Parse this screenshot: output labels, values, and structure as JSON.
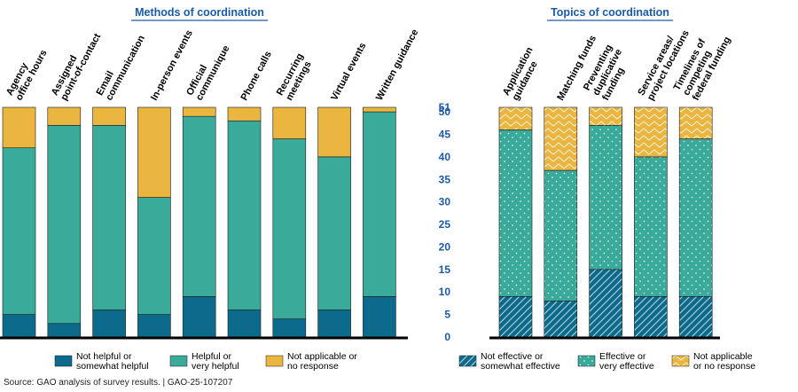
{
  "chart_data": [
    {
      "type": "bar",
      "stacked": true,
      "title": "Methods of coordination",
      "categories": [
        [
          "Agency",
          "office hours"
        ],
        [
          "Assigned",
          "point-of-contact"
        ],
        [
          "Email",
          "communication"
        ],
        [
          "In-person events"
        ],
        [
          "Official",
          "communique"
        ],
        [
          "Phone calls"
        ],
        [
          "Recurring",
          "meetings"
        ],
        [
          "Virtual events"
        ],
        [
          "Written guidance"
        ]
      ],
      "series": [
        {
          "name": "Not helpful or somewhat helpful",
          "legend_lines": [
            "Not helpful or",
            "somewhat helpful"
          ],
          "color": "#0c6b8c",
          "pattern": "solid",
          "values": [
            5,
            3,
            6,
            5,
            9,
            6,
            4,
            6,
            9
          ]
        },
        {
          "name": "Helpful or very helpful",
          "legend_lines": [
            "Helpful or",
            "very helpful"
          ],
          "color": "#3aaa9a",
          "pattern": "solid",
          "values": [
            37,
            44,
            41,
            26,
            40,
            42,
            40,
            34,
            41
          ]
        },
        {
          "name": "Not applicable or no response",
          "legend_lines": [
            "Not applicable or",
            "no response"
          ],
          "color": "#ebb640",
          "pattern": "solid",
          "values": [
            9,
            4,
            4,
            20,
            2,
            3,
            7,
            11,
            1
          ]
        }
      ],
      "ylim": [
        0,
        51
      ]
    },
    {
      "type": "bar",
      "stacked": true,
      "title": "Topics of coordination",
      "categories": [
        [
          "Application",
          "guidance"
        ],
        [
          "Matching funds"
        ],
        [
          "Preventing",
          "duplicative",
          "funding"
        ],
        [
          "Service areas/",
          "project locations"
        ],
        [
          "Timelines of",
          "competing",
          "federal funding"
        ]
      ],
      "series": [
        {
          "name": "Not effective or somewhat effective",
          "legend_lines": [
            "Not effective or",
            "somewhat effective"
          ],
          "color": "#0c6b8c",
          "pattern": "hatch",
          "values": [
            9,
            8,
            15,
            9,
            9
          ]
        },
        {
          "name": "Effective or very effective",
          "legend_lines": [
            "Effective or",
            "very effective"
          ],
          "color": "#3aaa9a",
          "pattern": "dots",
          "values": [
            37,
            29,
            32,
            31,
            35
          ]
        },
        {
          "name": "Not applicable or no response",
          "legend_lines": [
            "Not applicable",
            "or no response"
          ],
          "color": "#ebb640",
          "pattern": "chevron",
          "values": [
            5,
            14,
            4,
            11,
            7
          ]
        }
      ],
      "ylim": [
        0,
        51
      ],
      "yticks": [
        0,
        5,
        10,
        15,
        20,
        25,
        30,
        35,
        40,
        45,
        50,
        51
      ]
    }
  ],
  "source_note": "Source: GAO analysis of survey results.  |  GAO-25-107207",
  "colors": {
    "title": "#1a5aa8",
    "axis_labels": "#1a5aa8",
    "baseline": "#000000"
  }
}
